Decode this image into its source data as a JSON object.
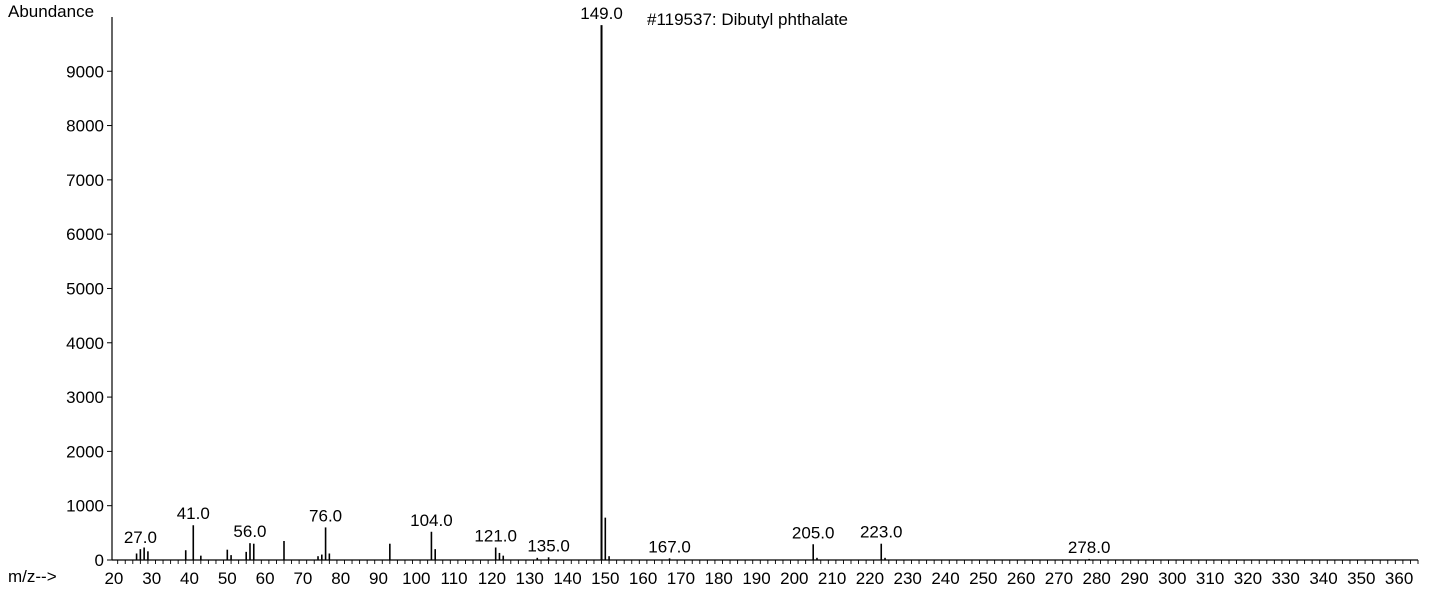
{
  "chart_data": {
    "type": "bar",
    "title": "#119537: Dibutyl phthalate",
    "ylabel": "Abundance",
    "xlabel": "m/z-->",
    "xlim": [
      15,
      365
    ],
    "ylim": [
      0,
      9999
    ],
    "x_ticks": [
      20,
      30,
      40,
      50,
      60,
      70,
      80,
      90,
      100,
      110,
      120,
      130,
      140,
      150,
      160,
      170,
      180,
      190,
      200,
      210,
      220,
      230,
      240,
      250,
      260,
      270,
      280,
      290,
      300,
      310,
      320,
      330,
      340,
      350,
      360
    ],
    "y_ticks": [
      0,
      1000,
      2000,
      3000,
      4000,
      5000,
      6000,
      7000,
      8000,
      9000
    ],
    "grid": false,
    "peaks": [
      {
        "mz": 26,
        "abundance": 120
      },
      {
        "mz": 27,
        "abundance": 200
      },
      {
        "mz": 28,
        "abundance": 230
      },
      {
        "mz": 29,
        "abundance": 160
      },
      {
        "mz": 39,
        "abundance": 180
      },
      {
        "mz": 41,
        "abundance": 640
      },
      {
        "mz": 43,
        "abundance": 80
      },
      {
        "mz": 50,
        "abundance": 190
      },
      {
        "mz": 51,
        "abundance": 90
      },
      {
        "mz": 55,
        "abundance": 150
      },
      {
        "mz": 56,
        "abundance": 310
      },
      {
        "mz": 57,
        "abundance": 300
      },
      {
        "mz": 65,
        "abundance": 350
      },
      {
        "mz": 74,
        "abundance": 70
      },
      {
        "mz": 75,
        "abundance": 100
      },
      {
        "mz": 76,
        "abundance": 600
      },
      {
        "mz": 77,
        "abundance": 120
      },
      {
        "mz": 93,
        "abundance": 300
      },
      {
        "mz": 104,
        "abundance": 520
      },
      {
        "mz": 105,
        "abundance": 200
      },
      {
        "mz": 121,
        "abundance": 230
      },
      {
        "mz": 122,
        "abundance": 130
      },
      {
        "mz": 123,
        "abundance": 80
      },
      {
        "mz": 132,
        "abundance": 40
      },
      {
        "mz": 135,
        "abundance": 50
      },
      {
        "mz": 149,
        "abundance": 9850
      },
      {
        "mz": 150,
        "abundance": 780
      },
      {
        "mz": 151,
        "abundance": 70
      },
      {
        "mz": 167,
        "abundance": 30
      },
      {
        "mz": 205,
        "abundance": 290
      },
      {
        "mz": 206,
        "abundance": 40
      },
      {
        "mz": 223,
        "abundance": 300
      },
      {
        "mz": 224,
        "abundance": 40
      },
      {
        "mz": 278,
        "abundance": 20
      }
    ],
    "peak_labels": [
      "27.0",
      "41.0",
      "56.0",
      "76.0",
      "104.0",
      "121.0",
      "135.0",
      "149.0",
      "167.0",
      "205.0",
      "223.0",
      "278.0"
    ]
  }
}
